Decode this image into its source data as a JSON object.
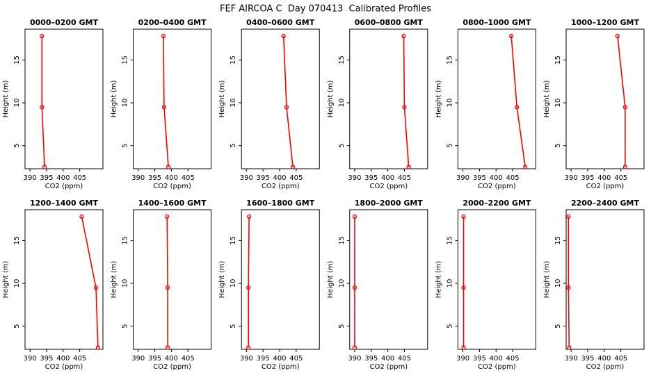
{
  "title": "FEF AIRCOA C  Day 070413  Calibrated Profiles",
  "chart_data": [
    {
      "type": "line",
      "title": "0000–0200 GMT",
      "xlabel": "CO2 (ppm)",
      "ylabel": "Height (m)",
      "x": [
        393.6,
        393.6,
        394.4
      ],
      "values": [
        17.8,
        9.5,
        2.5
      ],
      "color": "#ff0000",
      "xlim": [
        388.5,
        412
      ],
      "ylim": [
        2.3,
        18.6
      ],
      "xticks": [
        390,
        395,
        400,
        405
      ],
      "yticks": [
        5,
        10,
        15
      ],
      "grid": false
    },
    {
      "type": "line",
      "title": "0200–0400 GMT",
      "xlabel": "CO2 (ppm)",
      "ylabel": "Height (m)",
      "x": [
        397.6,
        397.8,
        399.1
      ],
      "values": [
        17.8,
        9.5,
        2.5
      ],
      "color": "#ff0000",
      "xlim": [
        388.5,
        412
      ],
      "ylim": [
        2.3,
        18.6
      ],
      "xticks": [
        390,
        395,
        400,
        405
      ],
      "yticks": [
        5,
        10,
        15
      ],
      "grid": false
    },
    {
      "type": "line",
      "title": "0400–0600 GMT",
      "xlabel": "CO2 (ppm)",
      "ylabel": "Height (m)",
      "x": [
        401.2,
        402.1,
        404.0
      ],
      "values": [
        17.8,
        9.5,
        2.5
      ],
      "color": "#ff0000",
      "xlim": [
        388.5,
        412
      ],
      "ylim": [
        2.3,
        18.6
      ],
      "xticks": [
        390,
        395,
        400,
        405
      ],
      "yticks": [
        5,
        10,
        15
      ],
      "grid": false
    },
    {
      "type": "line",
      "title": "0600–0800 GMT",
      "xlabel": "CO2 (ppm)",
      "ylabel": "Height (m)",
      "x": [
        404.8,
        405.0,
        406.3
      ],
      "values": [
        17.8,
        9.5,
        2.5
      ],
      "color": "#ff0000",
      "xlim": [
        388.5,
        412
      ],
      "ylim": [
        2.3,
        18.6
      ],
      "xticks": [
        390,
        395,
        400,
        405
      ],
      "yticks": [
        5,
        10,
        15
      ],
      "grid": false
    },
    {
      "type": "line",
      "title": "0800–1000 GMT",
      "xlabel": "CO2 (ppm)",
      "ylabel": "Height (m)",
      "x": [
        404.6,
        406.3,
        408.8
      ],
      "values": [
        17.8,
        9.5,
        2.5
      ],
      "color": "#ff0000",
      "xlim": [
        388.5,
        412
      ],
      "ylim": [
        2.3,
        18.6
      ],
      "xticks": [
        390,
        395,
        400,
        405
      ],
      "yticks": [
        5,
        10,
        15
      ],
      "grid": false
    },
    {
      "type": "line",
      "title": "1000–1200 GMT",
      "xlabel": "CO2 (ppm)",
      "ylabel": "Height (m)",
      "x": [
        404.0,
        406.3,
        406.3
      ],
      "values": [
        17.8,
        9.5,
        2.5
      ],
      "color": "#ff0000",
      "xlim": [
        388.5,
        412
      ],
      "ylim": [
        2.3,
        18.6
      ],
      "xticks": [
        390,
        395,
        400,
        405
      ],
      "yticks": [
        5,
        10,
        15
      ],
      "grid": false
    },
    {
      "type": "line",
      "title": "1200–1400 GMT",
      "xlabel": "CO2 (ppm)",
      "ylabel": "Height (m)",
      "x": [
        405.6,
        409.9,
        410.5
      ],
      "values": [
        17.8,
        9.5,
        2.5
      ],
      "color": "#ff0000",
      "xlim": [
        388.5,
        412
      ],
      "ylim": [
        2.3,
        18.6
      ],
      "xticks": [
        390,
        395,
        400,
        405
      ],
      "yticks": [
        5,
        10,
        15
      ],
      "grid": false
    },
    {
      "type": "line",
      "title": "1400–1600 GMT",
      "xlabel": "CO2 (ppm)",
      "ylabel": "Height (m)",
      "x": [
        398.7,
        398.9,
        398.9
      ],
      "values": [
        17.8,
        9.5,
        2.5
      ],
      "color": "#ff0000",
      "xlim": [
        388.5,
        412
      ],
      "ylim": [
        2.3,
        18.6
      ],
      "xticks": [
        390,
        395,
        400,
        405
      ],
      "yticks": [
        5,
        10,
        15
      ],
      "grid": false
    },
    {
      "type": "line",
      "title": "1600–1800 GMT",
      "xlabel": "CO2 (ppm)",
      "ylabel": "Height (m)",
      "x": [
        390.8,
        390.6,
        390.6
      ],
      "values": [
        17.8,
        9.5,
        2.5
      ],
      "color": "#ff0000",
      "xlim": [
        388.5,
        412
      ],
      "ylim": [
        2.3,
        18.6
      ],
      "xticks": [
        390,
        395,
        400,
        405
      ],
      "yticks": [
        5,
        10,
        15
      ],
      "grid": false
    },
    {
      "type": "line",
      "title": "1800–2000 GMT",
      "xlabel": "CO2 (ppm)",
      "ylabel": "Height (m)",
      "x": [
        390.0,
        390.0,
        390.0
      ],
      "values": [
        17.8,
        9.5,
        2.5
      ],
      "color": "#ff0000",
      "xlim": [
        388.5,
        412
      ],
      "ylim": [
        2.3,
        18.6
      ],
      "xticks": [
        390,
        395,
        400,
        405
      ],
      "yticks": [
        5,
        10,
        15
      ],
      "grid": false
    },
    {
      "type": "line",
      "title": "2000–2200 GMT",
      "xlabel": "CO2 (ppm)",
      "ylabel": "Height (m)",
      "x": [
        390.2,
        390.2,
        390.2
      ],
      "values": [
        17.8,
        9.5,
        2.5
      ],
      "color": "#ff0000",
      "xlim": [
        388.5,
        412
      ],
      "ylim": [
        2.3,
        18.6
      ],
      "xticks": [
        390,
        395,
        400,
        405
      ],
      "yticks": [
        5,
        10,
        15
      ],
      "grid": false
    },
    {
      "type": "line",
      "title": "2200–2400 GMT",
      "xlabel": "CO2 (ppm)",
      "ylabel": "Height (m)",
      "x": [
        389.2,
        389.2,
        389.4
      ],
      "values": [
        17.8,
        9.5,
        2.5
      ],
      "color": "#ff0000",
      "xlim": [
        388.5,
        412
      ],
      "ylim": [
        2.3,
        18.6
      ],
      "xticks": [
        390,
        395,
        400,
        405
      ],
      "yticks": [
        5,
        10,
        15
      ],
      "grid": false
    }
  ]
}
